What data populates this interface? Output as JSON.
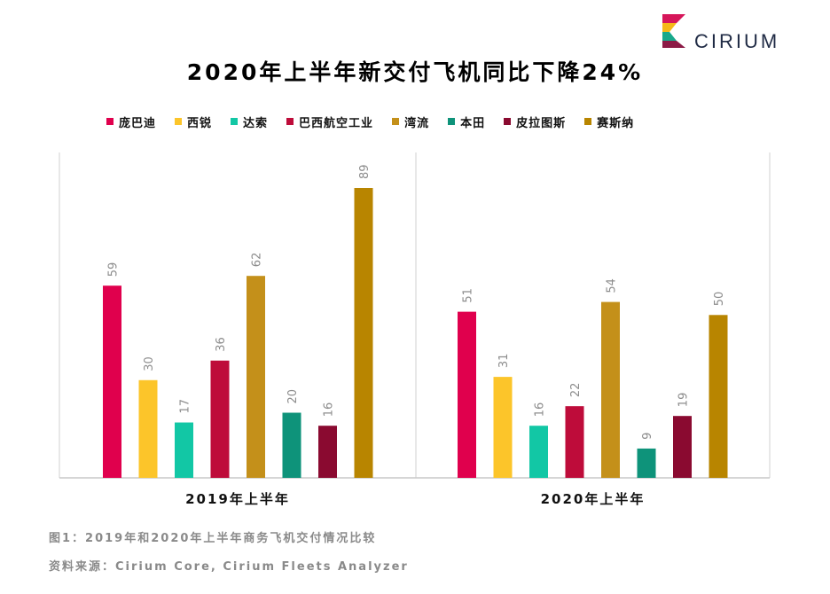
{
  "brand": {
    "name": "CIRIUM",
    "logo_colors": [
      "#d6165a",
      "#f5b818",
      "#18a98b",
      "#8c1b46"
    ]
  },
  "caption": {
    "figure": "图1：2019年和2020年上半年商务飞机交付情况比较",
    "source": "资料来源：Cirium Core, Cirium Fleets Analyzer"
  },
  "chart_data": {
    "type": "bar",
    "title": "2020年上半年新交付飞机同比下降24%",
    "categories": [
      "2019年上半年",
      "2020年上半年"
    ],
    "series": [
      {
        "name": "庞巴迪",
        "color": "#e0004d",
        "values": [
          59,
          51
        ]
      },
      {
        "name": "西锐",
        "color": "#fcc52a",
        "values": [
          30,
          31
        ]
      },
      {
        "name": "达索",
        "color": "#12c7a5",
        "values": [
          17,
          16
        ]
      },
      {
        "name": "巴西航空工业",
        "color": "#be0c3a",
        "values": [
          36,
          22
        ]
      },
      {
        "name": "湾流",
        "color": "#c4901a",
        "values": [
          62,
          54
        ]
      },
      {
        "name": "本田",
        "color": "#0e937a",
        "values": [
          20,
          9
        ]
      },
      {
        "name": "皮拉图斯",
        "color": "#8a0a30",
        "values": [
          16,
          19
        ]
      },
      {
        "name": "赛斯纳",
        "color": "#b88500",
        "values": [
          89,
          50
        ]
      }
    ],
    "ylim": [
      0,
      89
    ],
    "legend": "top",
    "grid": false,
    "xlabel": "",
    "ylabel": ""
  }
}
